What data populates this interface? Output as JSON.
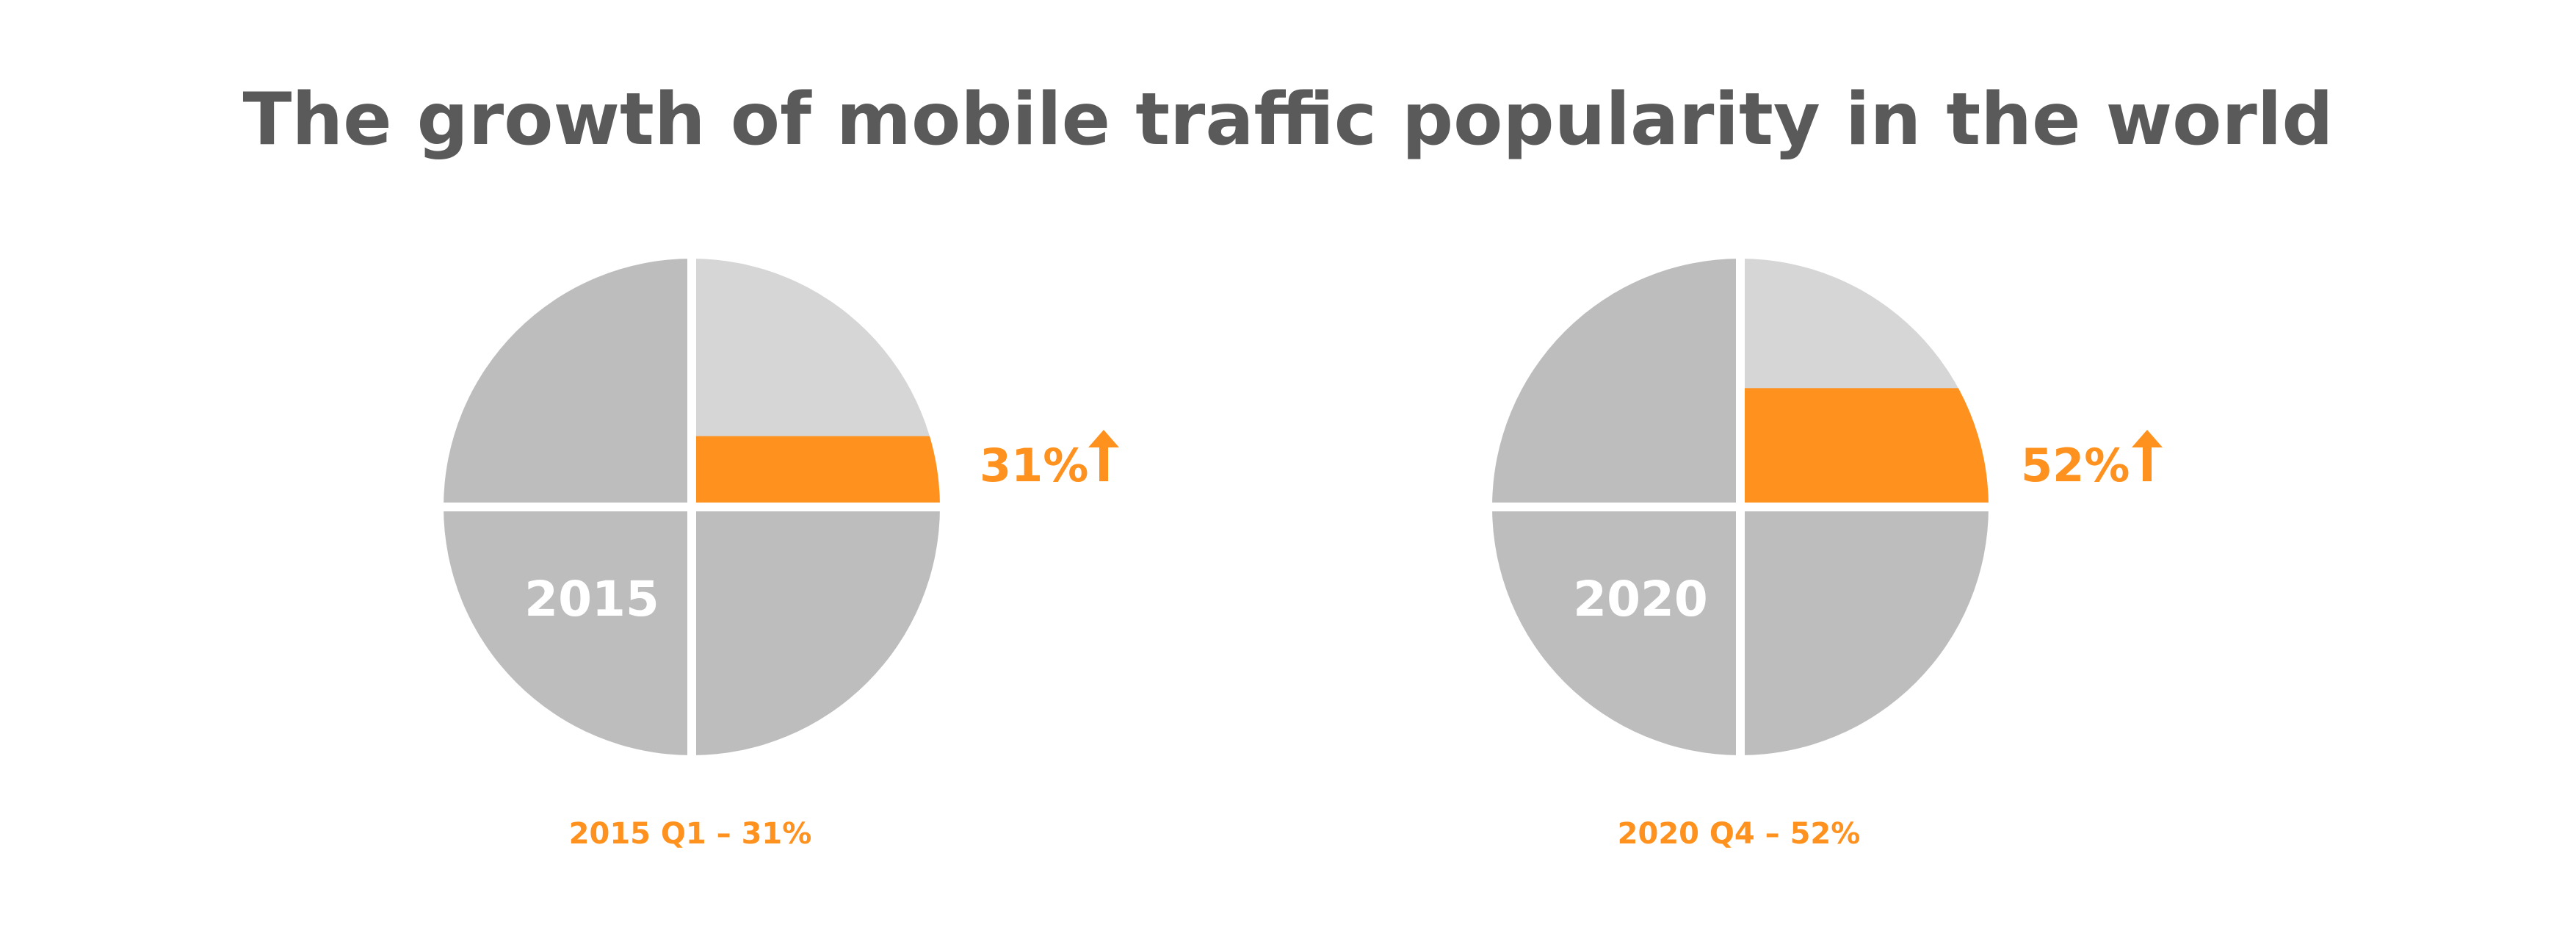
{
  "colors": {
    "title": "#5a5a5a",
    "accent": "#ff921e",
    "gray_dark": "#bdbdbd",
    "gray_light": "#d6d6d6",
    "background": "#ffffff",
    "year_label": "#ffffff"
  },
  "chart_data": {
    "type": "pie",
    "title": "The growth of mobile traffic popularity in the world",
    "charts": [
      {
        "year_label": "2015",
        "value": 31,
        "value_label": "31%",
        "caption": "2015 Q1 – 31%",
        "trend_icon": "arrow-up-icon"
      },
      {
        "year_label": "2020",
        "value": 52,
        "value_label": "52%",
        "caption": "2020 Q4 – 52%",
        "trend_icon": "arrow-up-icon"
      }
    ]
  }
}
